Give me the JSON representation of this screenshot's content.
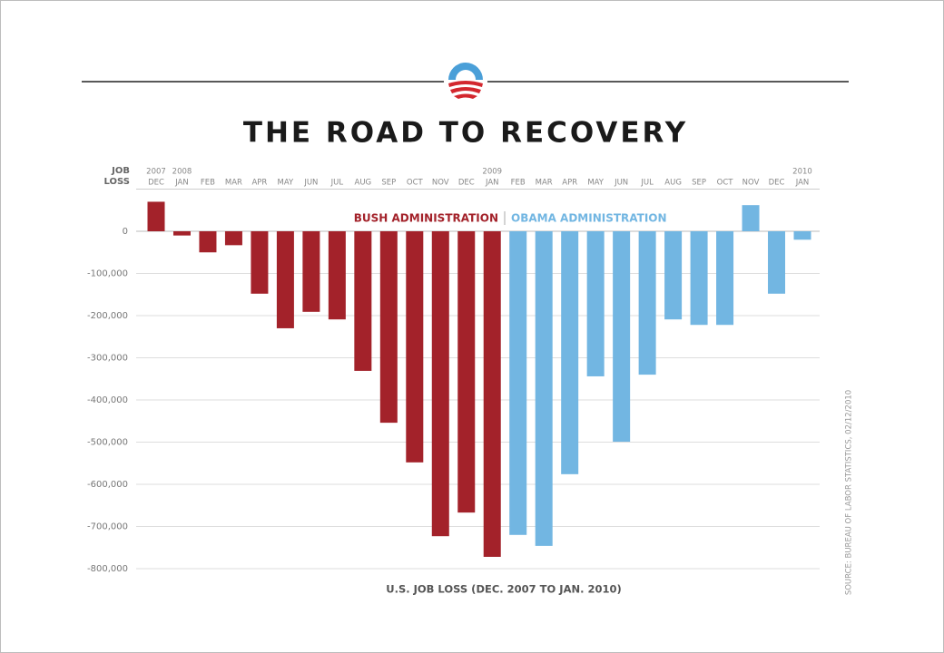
{
  "chart_data": {
    "type": "bar",
    "title": "THE ROAD TO RECOVERY",
    "y_label": "JOB LOSS",
    "x_label": "U.S. JOB LOSS (DEC. 2007 TO JAN. 2010)",
    "source": "SOURCE: BUREAU OF LABOR STATISTICS, 02/12/2010",
    "categories": [
      "DEC",
      "JAN",
      "FEB",
      "MAR",
      "APR",
      "MAY",
      "JUN",
      "JUL",
      "AUG",
      "SEP",
      "OCT",
      "NOV",
      "DEC",
      "JAN",
      "FEB",
      "MAR",
      "APR",
      "MAY",
      "JUN",
      "JUL",
      "AUG",
      "SEP",
      "OCT",
      "NOV",
      "DEC",
      "JAN"
    ],
    "years": [
      "2007",
      "2008",
      null,
      null,
      null,
      null,
      null,
      null,
      null,
      null,
      null,
      null,
      null,
      "2009",
      null,
      null,
      null,
      null,
      null,
      null,
      null,
      null,
      null,
      null,
      null,
      "2010"
    ],
    "series": [
      {
        "name": "BUSH ADMINISTRATION",
        "color": "#a3222a",
        "values": [
          70000,
          -10000,
          -50000,
          -33000,
          -148000,
          -230000,
          -191000,
          -209000,
          -331000,
          -454000,
          -548000,
          -723000,
          -667000,
          -772000,
          null,
          null,
          null,
          null,
          null,
          null,
          null,
          null,
          null,
          null,
          null,
          null
        ]
      },
      {
        "name": "OBAMA ADMINISTRATION",
        "color": "#72b6e2",
        "values": [
          null,
          null,
          null,
          null,
          null,
          null,
          null,
          null,
          null,
          null,
          null,
          null,
          null,
          null,
          -720000,
          -746000,
          -576000,
          -344000,
          -499000,
          -340000,
          -209000,
          -222000,
          -222000,
          62000,
          -148000,
          -20000
        ]
      }
    ],
    "ylim": [
      -800000,
      100000
    ],
    "yticks": [
      0,
      {
        "value": -100000,
        "label": "-100,000"
      },
      {
        "value": -200000,
        "label": "-200,000"
      },
      {
        "value": -300000,
        "label": "-300,000"
      },
      {
        "value": -400000,
        "label": "-400,000"
      },
      {
        "value": -500000,
        "label": "-500,000"
      },
      {
        "value": -600000,
        "label": "-600,000"
      },
      {
        "value": -700000,
        "label": "-700,000"
      },
      {
        "value": -800000,
        "label": "-800,000"
      }
    ],
    "grid": true
  }
}
